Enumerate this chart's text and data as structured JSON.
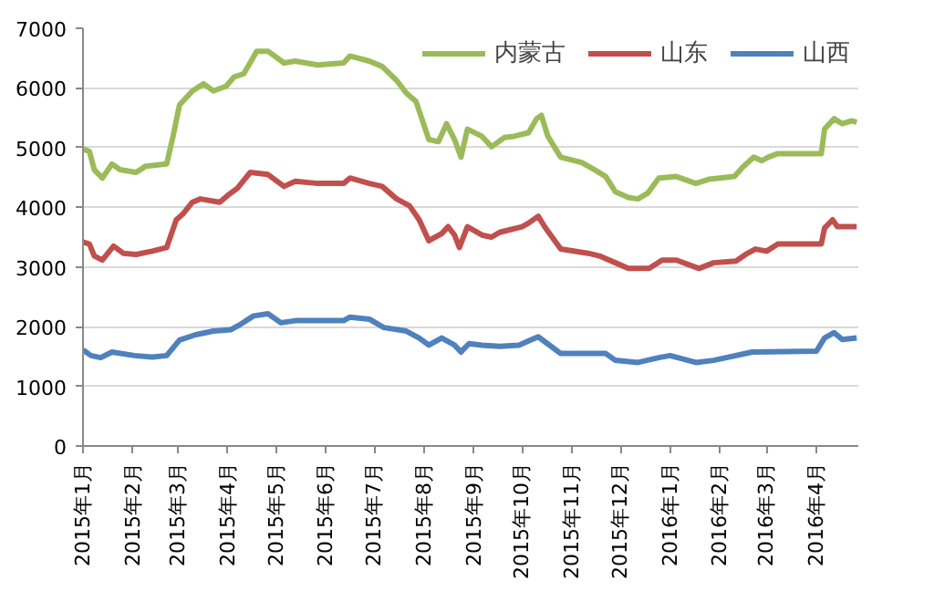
{
  "chart_data": {
    "type": "line",
    "ylim": [
      0,
      7000
    ],
    "yticks": [
      0,
      1000,
      2000,
      3000,
      4000,
      5000,
      6000,
      7000
    ],
    "xlim": [
      "2015-01-01",
      "2016-04-27"
    ],
    "xticks": [
      {
        "value": "2015-01-01",
        "label": "2015年1月"
      },
      {
        "value": "2015-02-01",
        "label": "2015年2月"
      },
      {
        "value": "2015-03-01",
        "label": "2015年3月"
      },
      {
        "value": "2015-04-01",
        "label": "2015年4月"
      },
      {
        "value": "2015-05-01",
        "label": "2015年5月"
      },
      {
        "value": "2015-06-01",
        "label": "2015年6月"
      },
      {
        "value": "2015-07-01",
        "label": "2015年7月"
      },
      {
        "value": "2015-08-01",
        "label": "2015年8月"
      },
      {
        "value": "2015-09-01",
        "label": "2015年9月"
      },
      {
        "value": "2015-10-01",
        "label": "2015年10月"
      },
      {
        "value": "2015-11-01",
        "label": "2015年11月"
      },
      {
        "value": "2015-12-01",
        "label": "2015年12月"
      },
      {
        "value": "2016-01-01",
        "label": "2016年1月"
      },
      {
        "value": "2016-02-01",
        "label": "2016年2月"
      },
      {
        "value": "2016-03-01",
        "label": "2016年3月"
      },
      {
        "value": "2016-04-01",
        "label": "2016年4月"
      }
    ],
    "grid": "y",
    "legend": "top right",
    "line_style": "solid",
    "marker": "none",
    "series": [
      {
        "name": "内蒙古",
        "color": "#9bbb59",
        "x": [
          "2015-01-01",
          "2015-01-05",
          "2015-01-08",
          "2015-01-13",
          "2015-01-19",
          "2015-01-24",
          "2015-02-03",
          "2015-02-09",
          "2015-02-22",
          "2015-02-26",
          "2015-03-02",
          "2015-03-10",
          "2015-03-17",
          "2015-03-23",
          "2015-03-31",
          "2015-04-05",
          "2015-04-11",
          "2015-04-19",
          "2015-04-26",
          "2015-05-06",
          "2015-05-13",
          "2015-05-27",
          "2015-06-12",
          "2015-06-16",
          "2015-06-28",
          "2015-07-06",
          "2015-07-15",
          "2015-07-21",
          "2015-07-27",
          "2015-08-04",
          "2015-08-10",
          "2015-08-15",
          "2015-08-20",
          "2015-08-24",
          "2015-08-28",
          "2015-09-06",
          "2015-09-12",
          "2015-09-20",
          "2015-09-26",
          "2015-10-05",
          "2015-10-10",
          "2015-10-13",
          "2015-10-17",
          "2015-10-25",
          "2015-11-07",
          "2015-11-15",
          "2015-11-22",
          "2015-11-28",
          "2015-12-06",
          "2015-12-12",
          "2015-12-18",
          "2015-12-25",
          "2016-01-05",
          "2016-01-17",
          "2016-01-25",
          "2016-02-10",
          "2016-02-15",
          "2016-02-22",
          "2016-02-27",
          "2016-03-02",
          "2016-03-08",
          "2016-04-04",
          "2016-04-06",
          "2016-04-12",
          "2016-04-17",
          "2016-04-23",
          "2016-04-26"
        ],
        "values": [
          4980,
          4935,
          4630,
          4490,
          4725,
          4630,
          4585,
          4690,
          4725,
          5190,
          5715,
          5950,
          6070,
          5950,
          6030,
          6185,
          6240,
          6615,
          6615,
          6420,
          6450,
          6385,
          6420,
          6535,
          6450,
          6360,
          6125,
          5915,
          5775,
          5135,
          5100,
          5400,
          5135,
          4840,
          5310,
          5190,
          5015,
          5170,
          5190,
          5250,
          5485,
          5540,
          5190,
          4840,
          4750,
          4630,
          4515,
          4260,
          4165,
          4140,
          4235,
          4490,
          4515,
          4400,
          4470,
          4515,
          4670,
          4840,
          4780,
          4840,
          4900,
          4900,
          5310,
          5485,
          5400,
          5450,
          5425
        ]
      },
      {
        "name": "山东",
        "color": "#c0504d",
        "x": [
          "2015-01-01",
          "2015-01-05",
          "2015-01-08",
          "2015-01-13",
          "2015-01-20",
          "2015-01-26",
          "2015-02-03",
          "2015-02-13",
          "2015-02-22",
          "2015-02-28",
          "2015-03-04",
          "2015-03-10",
          "2015-03-15",
          "2015-03-27",
          "2015-04-01",
          "2015-04-07",
          "2015-04-15",
          "2015-04-26",
          "2015-05-06",
          "2015-05-13",
          "2015-05-27",
          "2015-06-12",
          "2015-06-16",
          "2015-06-28",
          "2015-07-06",
          "2015-07-15",
          "2015-07-23",
          "2015-07-29",
          "2015-08-04",
          "2015-08-12",
          "2015-08-16",
          "2015-08-20",
          "2015-08-23",
          "2015-08-28",
          "2015-09-06",
          "2015-09-12",
          "2015-09-17",
          "2015-09-22",
          "2015-10-01",
          "2015-10-05",
          "2015-10-11",
          "2015-10-15",
          "2015-10-25",
          "2015-11-11",
          "2015-11-18",
          "2015-11-28",
          "2015-12-06",
          "2015-12-19",
          "2015-12-27",
          "2016-01-05",
          "2016-01-19",
          "2016-01-28",
          "2016-02-11",
          "2016-02-17",
          "2016-02-23",
          "2016-03-01",
          "2016-03-08",
          "2016-04-04",
          "2016-04-06",
          "2016-04-11",
          "2016-04-14",
          "2016-04-26"
        ],
        "values": [
          3420,
          3385,
          3185,
          3115,
          3350,
          3230,
          3210,
          3265,
          3325,
          3790,
          3885,
          4085,
          4140,
          4085,
          4200,
          4320,
          4585,
          4550,
          4350,
          4435,
          4400,
          4400,
          4490,
          4400,
          4350,
          4140,
          4025,
          3790,
          3440,
          3560,
          3675,
          3535,
          3325,
          3675,
          3535,
          3500,
          3580,
          3615,
          3675,
          3735,
          3850,
          3675,
          3300,
          3230,
          3185,
          3070,
          2975,
          2975,
          3115,
          3115,
          2975,
          3070,
          3100,
          3210,
          3300,
          3265,
          3385,
          3385,
          3650,
          3790,
          3675,
          3675
        ]
      },
      {
        "name": "山西",
        "color": "#4f81bd",
        "x": [
          "2015-01-01",
          "2015-01-06",
          "2015-01-12",
          "2015-01-19",
          "2015-02-02",
          "2015-02-13",
          "2015-02-22",
          "2015-03-02",
          "2015-03-12",
          "2015-03-23",
          "2015-04-03",
          "2015-04-09",
          "2015-04-17",
          "2015-04-26",
          "2015-05-04",
          "2015-05-13",
          "2015-06-12",
          "2015-06-16",
          "2015-06-28",
          "2015-07-07",
          "2015-07-21",
          "2015-07-29",
          "2015-08-04",
          "2015-08-12",
          "2015-08-20",
          "2015-08-24",
          "2015-08-29",
          "2015-09-06",
          "2015-09-17",
          "2015-09-29",
          "2015-10-07",
          "2015-10-11",
          "2015-10-15",
          "2015-10-25",
          "2015-11-22",
          "2015-11-28",
          "2015-12-12",
          "2015-12-25",
          "2016-01-01",
          "2016-01-17",
          "2016-01-28",
          "2016-02-21",
          "2016-04-01",
          "2016-04-06",
          "2016-04-12",
          "2016-04-17",
          "2016-04-26"
        ],
        "values": [
          1610,
          1515,
          1480,
          1575,
          1515,
          1490,
          1515,
          1775,
          1865,
          1925,
          1950,
          2040,
          2180,
          2215,
          2065,
          2100,
          2100,
          2160,
          2125,
          1985,
          1925,
          1810,
          1690,
          1810,
          1690,
          1575,
          1715,
          1690,
          1670,
          1690,
          1785,
          1830,
          1750,
          1550,
          1550,
          1435,
          1400,
          1480,
          1515,
          1400,
          1435,
          1575,
          1590,
          1810,
          1900,
          1785,
          1810
        ]
      }
    ]
  }
}
